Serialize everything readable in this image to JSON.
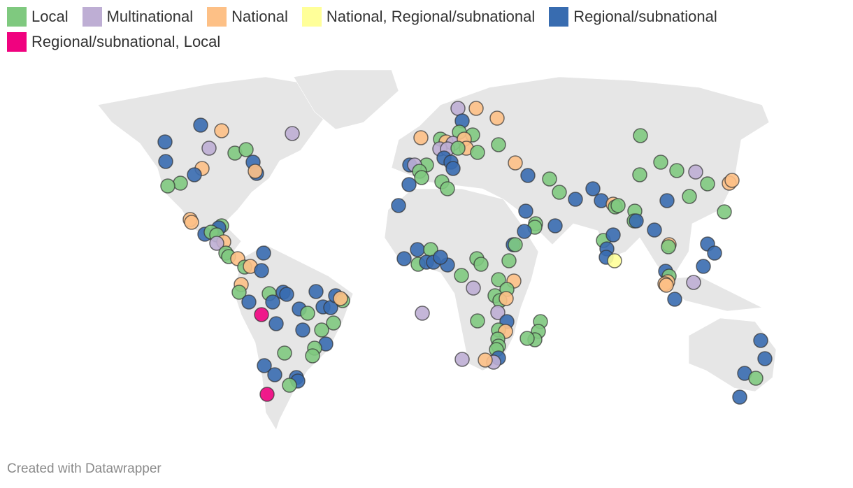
{
  "legend": [
    {
      "label": "Local",
      "color": "#7fc97f"
    },
    {
      "label": "Multinational",
      "color": "#beaed4"
    },
    {
      "label": "National",
      "color": "#fdc086"
    },
    {
      "label": "National, Regional/subnational",
      "color": "#ffff99"
    },
    {
      "label": "Regional/subnational",
      "color": "#386cb0"
    },
    {
      "label": "Regional/subnational, Local",
      "color": "#f0027f"
    }
  ],
  "footer": "Created with Datawrapper"
}
